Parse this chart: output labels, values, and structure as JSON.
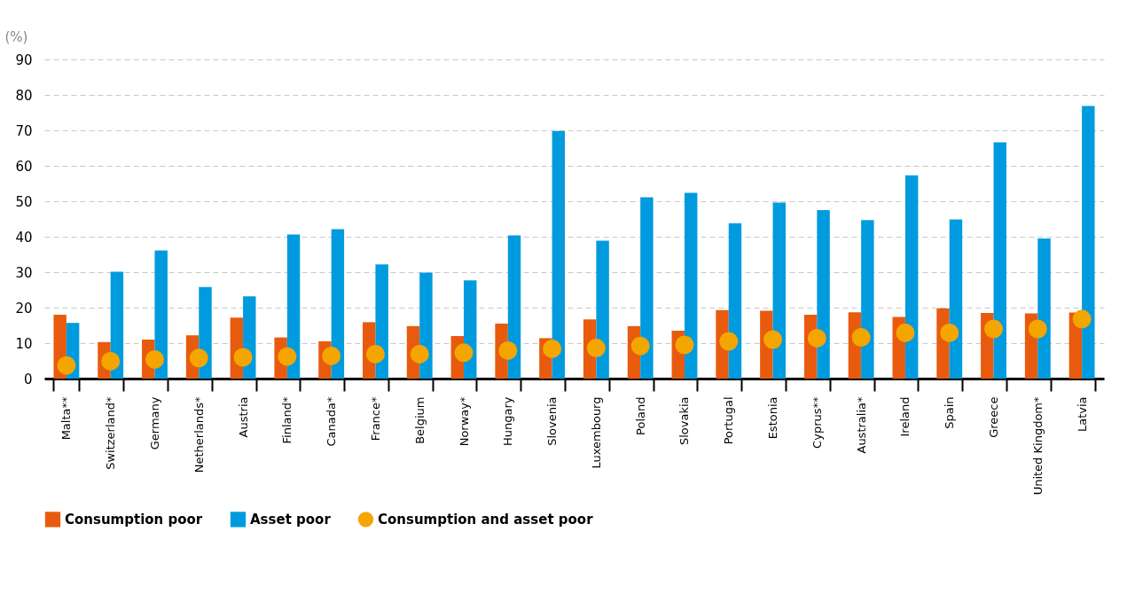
{
  "chart_data": {
    "type": "bar",
    "ylabel": "(%)",
    "categories": [
      "Malta**",
      "Switzerland*",
      "Germany",
      "Netherlands*",
      "Austria",
      "Finland*",
      "Canada*",
      "France*",
      "Belgium",
      "Norway*",
      "Hungary",
      "Slovenia",
      "Luxembourg",
      "Poland",
      "Slovakia",
      "Portugal",
      "Estonia",
      "Cyprus**",
      "Australia*",
      "Ireland",
      "Spain",
      "Greece",
      "United Kingdom*",
      "Latvia"
    ],
    "series": [
      {
        "name": "Consumption poor",
        "color": "#e85b0e",
        "values": [
          18.0,
          10.3,
          11.0,
          12.2,
          17.2,
          11.6,
          10.5,
          15.9,
          14.8,
          12.0,
          15.5,
          11.4,
          16.7,
          14.8,
          13.5,
          19.3,
          19.1,
          18.0,
          18.7,
          17.4,
          19.8,
          18.5,
          18.4,
          18.6
        ]
      },
      {
        "name": "Asset poor",
        "color": "#009bde",
        "values": [
          15.7,
          30.1,
          36.1,
          25.8,
          23.2,
          40.6,
          42.1,
          32.2,
          29.9,
          27.7,
          40.4,
          69.8,
          38.9,
          51.1,
          52.4,
          43.8,
          49.6,
          47.5,
          44.7,
          57.3,
          44.9,
          66.6,
          39.5,
          76.9
        ]
      },
      {
        "name": "Consumption and asset poor",
        "type": "scatter",
        "color": "#f5a500",
        "values": [
          3.7,
          4.9,
          5.4,
          5.8,
          6.0,
          6.2,
          6.4,
          6.9,
          6.9,
          7.3,
          7.9,
          8.4,
          8.6,
          9.2,
          9.5,
          10.5,
          11.0,
          11.4,
          11.6,
          12.9,
          12.9,
          14.0,
          14.0,
          16.8
        ]
      }
    ],
    "ylim": [
      0,
      90
    ],
    "yticks": [
      0,
      10,
      20,
      30,
      40,
      50,
      60,
      70,
      80,
      90
    ],
    "grid": "y",
    "legend": "bottom",
    "marker": "circle"
  }
}
